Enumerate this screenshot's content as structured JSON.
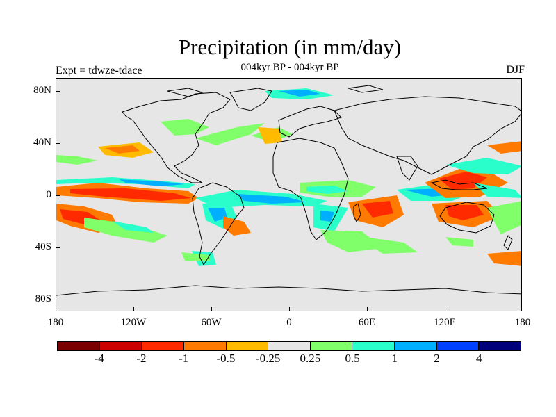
{
  "title": "Precipitation (in mm/day)",
  "subtitle_center": "004kyr BP - 004kyr BP",
  "subtitle_left": "Expt = tdwze-tdace",
  "subtitle_right": "DJF",
  "y_axis": [
    "80N",
    "40N",
    "0",
    "40S",
    "80S"
  ],
  "x_axis": [
    "180",
    "120W",
    "60W",
    "0",
    "60E",
    "120E",
    "180"
  ],
  "colorbar": {
    "colors": [
      "#7a0000",
      "#cc0000",
      "#ff2a00",
      "#ff7a00",
      "#ffbb00",
      "#e6e6e6",
      "#80ff6a",
      "#2affcc",
      "#00b0ff",
      "#0040ff",
      "#00007a"
    ],
    "labels": [
      "-4",
      "-2",
      "-1",
      "-0.5",
      "-0.25",
      "0.25",
      "0.5",
      "1",
      "2",
      "4"
    ]
  },
  "colors": {
    "land_bg": "#e6e6e6",
    "coastline": "#000000"
  }
}
